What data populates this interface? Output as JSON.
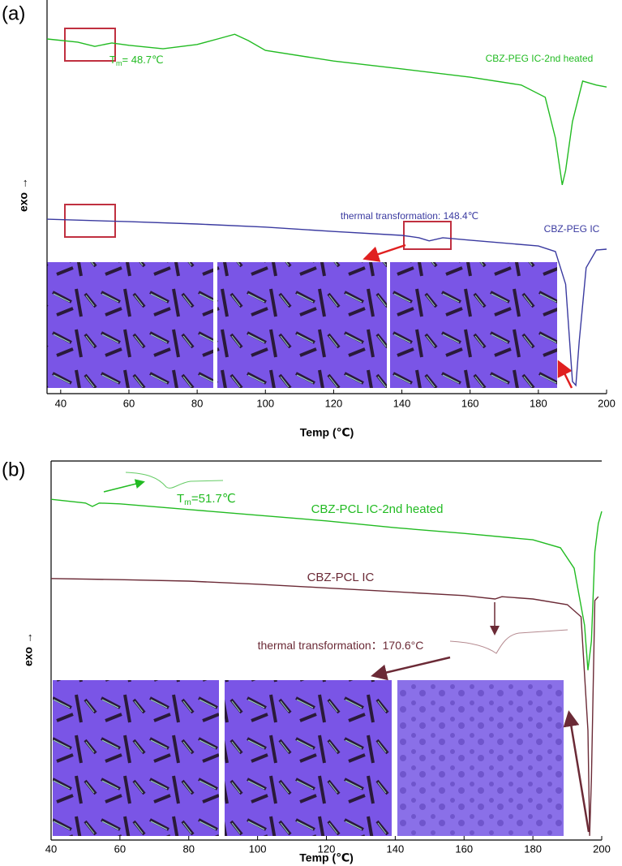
{
  "chart_data": [
    {
      "type": "line",
      "panel_label": "(a)",
      "xlabel": "Temp (℃)",
      "ylabel": "exo →",
      "xlim": [
        36,
        200
      ],
      "xticks": [
        40,
        60,
        80,
        100,
        120,
        140,
        160,
        180,
        200
      ],
      "ylim": [
        0,
        100
      ],
      "series": [
        {
          "name": "CBZ-PEG IC-2nd heated",
          "color": "#22bb22",
          "x": [
            36,
            45,
            50,
            55,
            60,
            70,
            80,
            86,
            91,
            95,
            100,
            120,
            140,
            160,
            175,
            182,
            185,
            187,
            188,
            190,
            193,
            197,
            200
          ],
          "values": [
            90.1,
            89.3,
            88.2,
            89.1,
            88.5,
            87.6,
            88.7,
            90.1,
            91.3,
            89.7,
            87.2,
            84.5,
            82.5,
            80.4,
            78.4,
            75.3,
            64.9,
            53.0,
            56.7,
            69.1,
            79.4,
            78.4,
            77.9
          ]
        },
        {
          "name": "CBZ-PEG IC",
          "color": "#3a3aa0",
          "x": [
            36,
            60,
            80,
            100,
            120,
            140,
            145,
            148,
            152,
            160,
            180,
            185,
            188,
            190,
            191,
            192,
            194,
            197,
            200
          ],
          "values": [
            44.3,
            43.7,
            43.1,
            42.3,
            41.2,
            40.2,
            39.6,
            38.8,
            39.6,
            39.0,
            37.5,
            36.1,
            27.8,
            3.1,
            2.1,
            13.4,
            32.0,
            36.5,
            36.7
          ]
        }
      ],
      "annotations": [
        {
          "text": "T",
          "sub": "m",
          "rest": "= 48.7℃",
          "color": "#22bb22"
        },
        {
          "text": "CBZ-PEG IC-2nd heated",
          "color": "#22bb22"
        },
        {
          "text": "thermal transformation: 148.4℃",
          "color": "#3a3aa0"
        },
        {
          "text": "CBZ-PEG IC",
          "color": "#3a3aa0"
        }
      ]
    },
    {
      "type": "line",
      "panel_label": "(b)",
      "xlabel": "Temp (℃)",
      "ylabel": "exo →",
      "xlim": [
        40,
        200
      ],
      "xticks": [
        40,
        60,
        80,
        100,
        120,
        140,
        160,
        180,
        200
      ],
      "ylim": [
        0,
        100
      ],
      "series": [
        {
          "name": "CBZ-PCL IC-2nd heated",
          "color": "#22bb22",
          "x": [
            40,
            50,
            52,
            54,
            60,
            80,
            100,
            120,
            140,
            160,
            180,
            188,
            192,
            195,
            196,
            197,
            198,
            199,
            200
          ],
          "values": [
            89.9,
            88.9,
            88.0,
            88.9,
            88.7,
            87.2,
            85.7,
            84.2,
            82.4,
            80.9,
            79.2,
            77.1,
            71.7,
            56.7,
            44.8,
            52.5,
            76.0,
            83.5,
            86.7
          ]
        },
        {
          "name": "CBZ-PCL IC",
          "color": "#6b2a36",
          "x": [
            40,
            60,
            80,
            100,
            120,
            140,
            160,
            169,
            171,
            180,
            190,
            194,
            196,
            196.5,
            197,
            198,
            199
          ],
          "values": [
            69.0,
            68.7,
            68.3,
            67.5,
            66.5,
            65.5,
            64.5,
            63.6,
            64.2,
            63.6,
            62.1,
            58.9,
            28.9,
            1.1,
            16.1,
            63.2,
            64.2
          ]
        }
      ],
      "annotations": [
        {
          "text": "T",
          "sub": "m",
          "rest": "=51.7℃",
          "color": "#22bb22"
        },
        {
          "text": "CBZ-PCL IC-2nd heated",
          "color": "#22bb22"
        },
        {
          "text": "CBZ-PCL IC",
          "color": "#6b2a36"
        },
        {
          "text": "thermal transformation：170.6°C",
          "color": "#6b2a36"
        }
      ]
    }
  ]
}
